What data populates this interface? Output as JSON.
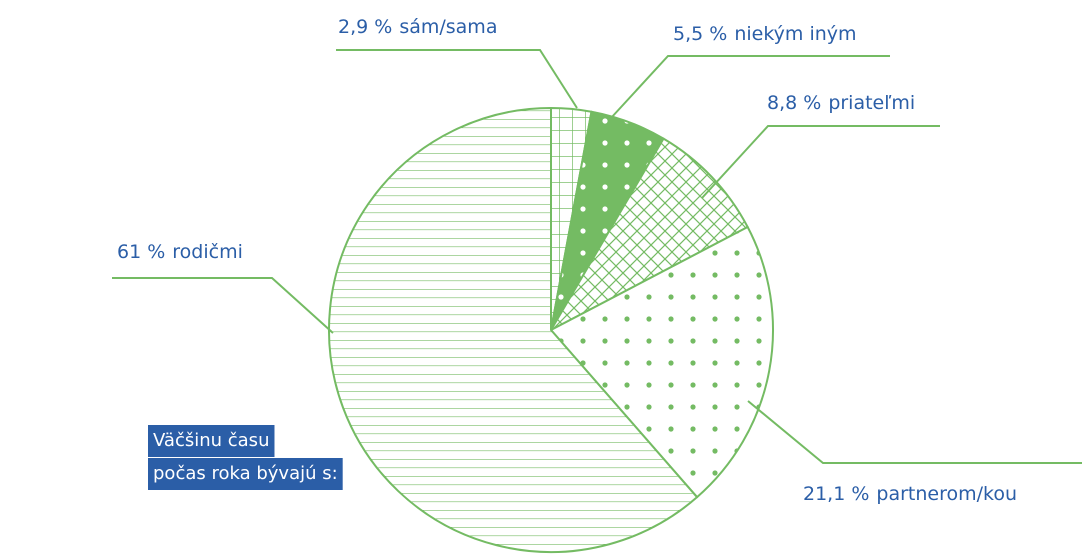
{
  "chart_data": {
    "type": "pie",
    "title": [
      "Väčšinu času",
      "počas roka bývajú s:"
    ],
    "categories": [
      "sám/sama",
      "niekým iným",
      "priateľmi",
      "partnerom/kou",
      "rodičmi"
    ],
    "values": [
      2.9,
      5.5,
      8.8,
      21.1,
      61
    ],
    "value_labels": [
      "2,9 %",
      "5,5 %",
      "8,8 %",
      "21,1 %",
      "61 %"
    ],
    "patterns": [
      "grid",
      "dots-on-solid",
      "crosshatch",
      "dots",
      "hlines"
    ],
    "color": "#74bb63",
    "label_color": "#2b5ea7",
    "title_background": "#2b5ea7",
    "start_angle": 0,
    "direction": "clockwise"
  }
}
